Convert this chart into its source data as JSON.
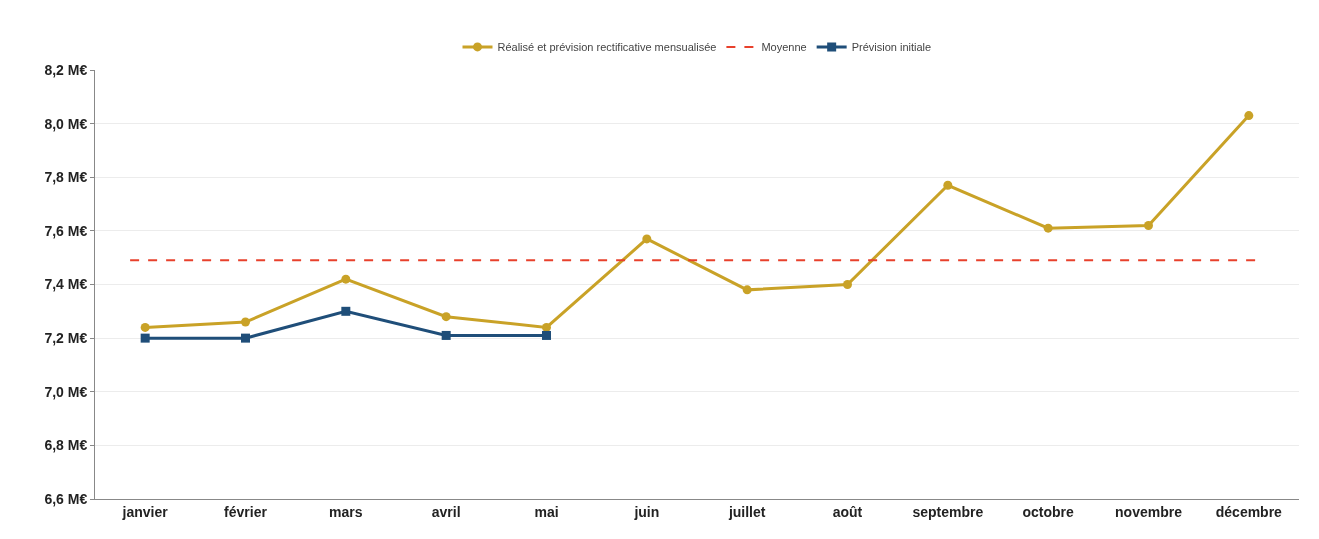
{
  "chart_data": {
    "type": "line",
    "categories": [
      "janvier",
      "février",
      "mars",
      "avril",
      "mai",
      "juin",
      "juillet",
      "août",
      "septembre",
      "octobre",
      "novembre",
      "décembre"
    ],
    "series": [
      {
        "name": "Réalisé et prévision rectificative mensualisée",
        "color": "#c9a227",
        "marker": "circle",
        "values": [
          7.24,
          7.26,
          7.42,
          7.28,
          7.24,
          7.57,
          7.38,
          7.4,
          7.77,
          7.61,
          7.62,
          8.03
        ]
      },
      {
        "name": "Prévision initiale",
        "color": "#1f4e79",
        "marker": "square",
        "values": [
          7.2,
          7.2,
          7.3,
          7.21,
          7.21,
          null,
          null,
          null,
          null,
          null,
          null,
          null
        ]
      }
    ],
    "ref_lines": [
      {
        "axis": "y",
        "value": 7.49,
        "label": "Moyenne",
        "color": "#e8412c",
        "line_style": "dashed"
      }
    ],
    "ylim": [
      6.6,
      8.2
    ],
    "yticks": [
      {
        "value": 6.6,
        "label": "6,6 M€"
      },
      {
        "value": 6.8,
        "label": "6,8 M€"
      },
      {
        "value": 7.0,
        "label": "7,0 M€"
      },
      {
        "value": 7.2,
        "label": "7,2 M€"
      },
      {
        "value": 7.4,
        "label": "7,4 M€"
      },
      {
        "value": 7.6,
        "label": "7,6 M€"
      },
      {
        "value": 7.8,
        "label": "7,8 M€"
      },
      {
        "value": 8.0,
        "label": "8,0 M€"
      },
      {
        "value": 8.2,
        "label": "8,2 M€"
      }
    ],
    "grid": "y",
    "legend": "top",
    "line_style": "solid"
  }
}
